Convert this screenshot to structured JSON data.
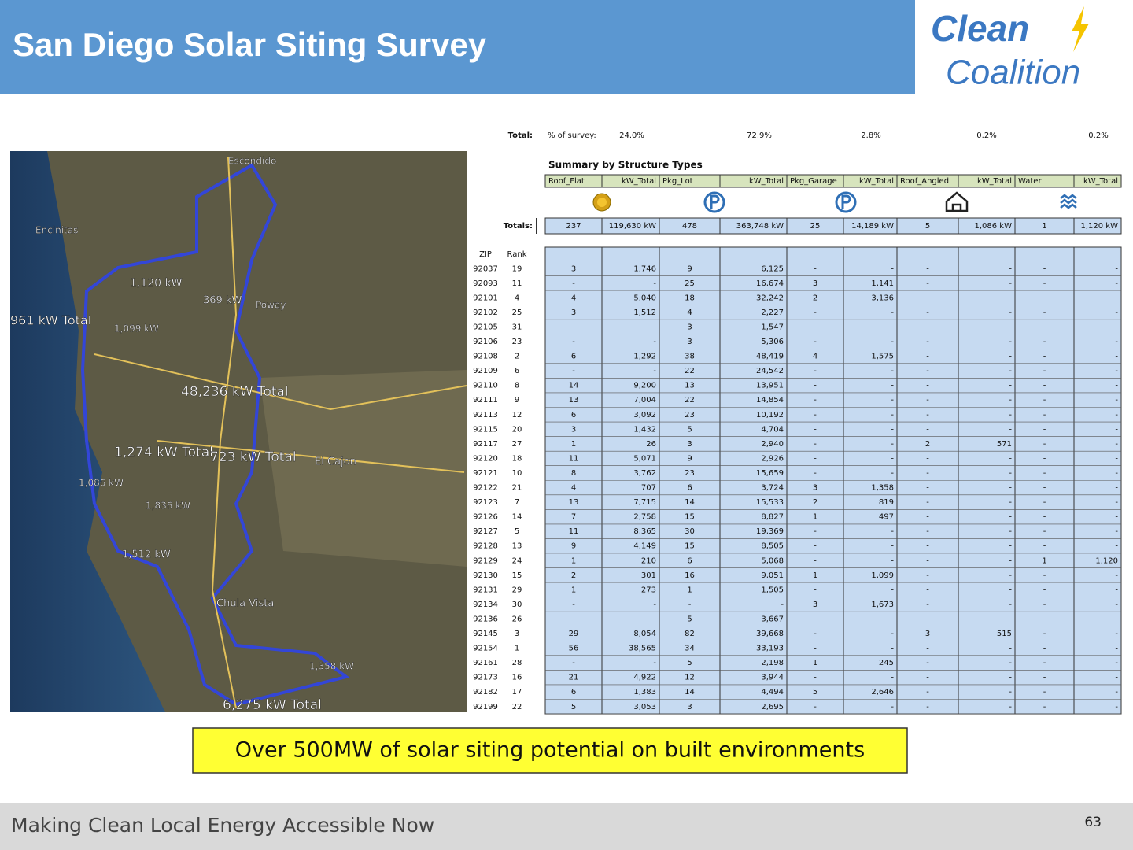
{
  "header": {
    "title": "San Diego Solar Siting Survey"
  },
  "logo": {
    "line1": "Clean",
    "line2": "Coalition"
  },
  "map": {
    "labels": [
      "Escondido",
      "Encinitas",
      "Poway",
      "El Cajon",
      "Chula Vista",
      "961 kW Total",
      "48,236 kW Total",
      "1,274 kW Total",
      "723 kW Total",
      "6,275 kW Total",
      "1,120 kW",
      "369 kW",
      "1,099 kW",
      "1,086 kW",
      "1,512 kW",
      "1,358 kW",
      "1,836 kW"
    ]
  },
  "table": {
    "total_label": "Total:",
    "survey_label": "% of survey:",
    "survey_pcts": [
      "24.0%",
      "72.9%",
      "2.8%",
      "0.2%",
      "0.2%"
    ],
    "summary_title": "Summary by Structure Types",
    "columns": [
      "Roof_Flat",
      "kW_Total",
      "Pkg_Lot",
      "kW_Total",
      "Pkg_Garage",
      "kW_Total",
      "Roof_Angled",
      "kW_Total",
      "Water",
      "kW_Total"
    ],
    "totals_label": "Totals:",
    "totals": [
      "237",
      "119,630 kW",
      "478",
      "363,748 kW",
      "25",
      "14,189 kW",
      "5",
      "1,086 kW",
      "1",
      "1,120 kW"
    ],
    "index_headers": [
      "ZIP",
      "Rank"
    ],
    "rows": [
      [
        "92037",
        "19",
        "3",
        "1,746",
        "9",
        "6,125",
        "-",
        "-",
        "-",
        "-",
        "-",
        "-"
      ],
      [
        "92093",
        "11",
        "-",
        "-",
        "25",
        "16,674",
        "3",
        "1,141",
        "-",
        "-",
        "-",
        "-"
      ],
      [
        "92101",
        "4",
        "4",
        "5,040",
        "18",
        "32,242",
        "2",
        "3,136",
        "-",
        "-",
        "-",
        "-"
      ],
      [
        "92102",
        "25",
        "3",
        "1,512",
        "4",
        "2,227",
        "-",
        "-",
        "-",
        "-",
        "-",
        "-"
      ],
      [
        "92105",
        "31",
        "-",
        "-",
        "3",
        "1,547",
        "-",
        "-",
        "-",
        "-",
        "-",
        "-"
      ],
      [
        "92106",
        "23",
        "-",
        "-",
        "3",
        "5,306",
        "-",
        "-",
        "-",
        "-",
        "-",
        "-"
      ],
      [
        "92108",
        "2",
        "6",
        "1,292",
        "38",
        "48,419",
        "4",
        "1,575",
        "-",
        "-",
        "-",
        "-"
      ],
      [
        "92109",
        "6",
        "-",
        "-",
        "22",
        "24,542",
        "-",
        "-",
        "-",
        "-",
        "-",
        "-"
      ],
      [
        "92110",
        "8",
        "14",
        "9,200",
        "13",
        "13,951",
        "-",
        "-",
        "-",
        "-",
        "-",
        "-"
      ],
      [
        "92111",
        "9",
        "13",
        "7,004",
        "22",
        "14,854",
        "-",
        "-",
        "-",
        "-",
        "-",
        "-"
      ],
      [
        "92113",
        "12",
        "6",
        "3,092",
        "23",
        "10,192",
        "-",
        "-",
        "-",
        "-",
        "-",
        "-"
      ],
      [
        "92115",
        "20",
        "3",
        "1,432",
        "5",
        "4,704",
        "-",
        "-",
        "-",
        "-",
        "-",
        "-"
      ],
      [
        "92117",
        "27",
        "1",
        "26",
        "3",
        "2,940",
        "-",
        "-",
        "2",
        "571",
        "-",
        "-"
      ],
      [
        "92120",
        "18",
        "11",
        "5,071",
        "9",
        "2,926",
        "-",
        "-",
        "-",
        "-",
        "-",
        "-"
      ],
      [
        "92121",
        "10",
        "8",
        "3,762",
        "23",
        "15,659",
        "-",
        "-",
        "-",
        "-",
        "-",
        "-"
      ],
      [
        "92122",
        "21",
        "4",
        "707",
        "6",
        "3,724",
        "3",
        "1,358",
        "-",
        "-",
        "-",
        "-"
      ],
      [
        "92123",
        "7",
        "13",
        "7,715",
        "14",
        "15,533",
        "2",
        "819",
        "-",
        "-",
        "-",
        "-"
      ],
      [
        "92126",
        "14",
        "7",
        "2,758",
        "15",
        "8,827",
        "1",
        "497",
        "-",
        "-",
        "-",
        "-"
      ],
      [
        "92127",
        "5",
        "11",
        "8,365",
        "30",
        "19,369",
        "-",
        "-",
        "-",
        "-",
        "-",
        "-"
      ],
      [
        "92128",
        "13",
        "9",
        "4,149",
        "15",
        "8,505",
        "-",
        "-",
        "-",
        "-",
        "-",
        "-"
      ],
      [
        "92129",
        "24",
        "1",
        "210",
        "6",
        "5,068",
        "-",
        "-",
        "-",
        "-",
        "1",
        "1,120"
      ],
      [
        "92130",
        "15",
        "2",
        "301",
        "16",
        "9,051",
        "1",
        "1,099",
        "-",
        "-",
        "-",
        "-"
      ],
      [
        "92131",
        "29",
        "1",
        "273",
        "1",
        "1,505",
        "-",
        "-",
        "-",
        "-",
        "-",
        "-"
      ],
      [
        "92134",
        "30",
        "-",
        "-",
        "-",
        "-",
        "3",
        "1,673",
        "-",
        "-",
        "-",
        "-"
      ],
      [
        "92136",
        "26",
        "-",
        "-",
        "5",
        "3,667",
        "-",
        "-",
        "-",
        "-",
        "-",
        "-"
      ],
      [
        "92145",
        "3",
        "29",
        "8,054",
        "82",
        "39,668",
        "-",
        "-",
        "3",
        "515",
        "-",
        "-"
      ],
      [
        "92154",
        "1",
        "56",
        "38,565",
        "34",
        "33,193",
        "-",
        "-",
        "-",
        "-",
        "-",
        "-"
      ],
      [
        "92161",
        "28",
        "-",
        "-",
        "5",
        "2,198",
        "1",
        "245",
        "-",
        "-",
        "-",
        "-"
      ],
      [
        "92173",
        "16",
        "21",
        "4,922",
        "12",
        "3,944",
        "-",
        "-",
        "-",
        "-",
        "-",
        "-"
      ],
      [
        "92182",
        "17",
        "6",
        "1,383",
        "14",
        "4,494",
        "5",
        "2,646",
        "-",
        "-",
        "-",
        "-"
      ],
      [
        "92199",
        "22",
        "5",
        "3,053",
        "3",
        "2,695",
        "-",
        "-",
        "-",
        "-",
        "-",
        "-"
      ]
    ]
  },
  "callout": "Over 500MW of solar siting potential on built environments",
  "footer": {
    "text": "Making Clean Local Energy Accessible Now",
    "page": "63"
  }
}
